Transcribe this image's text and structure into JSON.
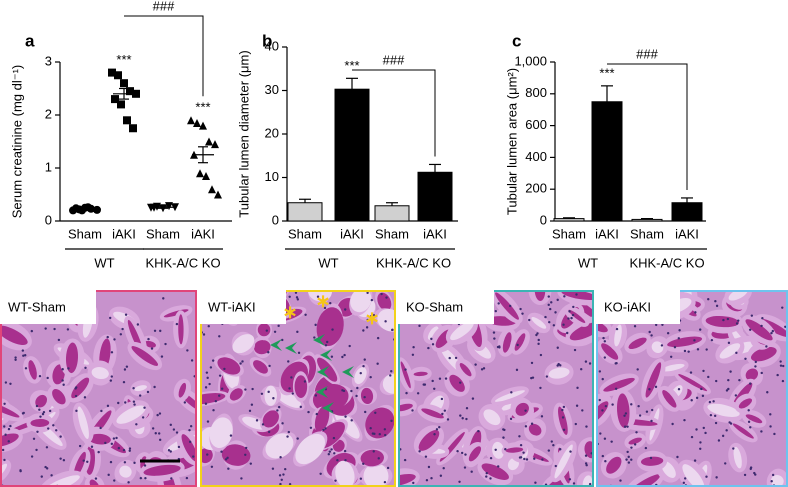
{
  "chart_data": [
    {
      "type": "dot",
      "panel": "a",
      "ylabel": "Serum creatinine (mg dl⁻¹)",
      "categories": [
        "Sham",
        "iAKI",
        "Sham",
        "iAKI"
      ],
      "groups": [
        "WT",
        "KHK-A/C KO"
      ],
      "markers": [
        "circle",
        "square",
        "triangle",
        "triangle-down"
      ],
      "points": [
        [
          0.2,
          0.22,
          0.25,
          0.23,
          0.21,
          0.24,
          0.2,
          0.26
        ],
        [
          2.8,
          2.75,
          2.6,
          2.45,
          2.4,
          2.3,
          2.2,
          1.9,
          1.75
        ],
        [
          0.25,
          0.27,
          0.24,
          0.28,
          0.26,
          0.25
        ],
        [
          1.9,
          1.85,
          1.8,
          1.5,
          1.45,
          1.25,
          0.9,
          0.85,
          0.6,
          0.5
        ]
      ],
      "means": [
        0.23,
        2.4,
        0.26,
        1.25
      ],
      "errors": [
        0.02,
        0.1,
        0.02,
        0.15
      ],
      "ylim": [
        0,
        3
      ],
      "yticks": [
        0,
        1,
        2,
        3
      ],
      "annotations": [
        "***",
        "***",
        "###"
      ]
    },
    {
      "type": "bar",
      "panel": "b",
      "ylabel": "Tubular lumen diameter (μm)",
      "categories": [
        "Sham",
        "iAKI",
        "Sham",
        "iAKI"
      ],
      "groups": [
        "WT",
        "KHK-A/C KO"
      ],
      "values": [
        4.2,
        30.3,
        3.5,
        11.2
      ],
      "errors": [
        0.8,
        2.5,
        0.7,
        1.8
      ],
      "colors": [
        "#d0d0d0",
        "#000000",
        "#d0d0d0",
        "#000000"
      ],
      "ylim": [
        0,
        40
      ],
      "yticks": [
        0,
        10,
        20,
        30,
        40
      ],
      "annotations": [
        "***",
        "###"
      ]
    },
    {
      "type": "bar",
      "panel": "c",
      "ylabel": "Tubular lumen area (μm²)",
      "categories": [
        "Sham",
        "iAKI",
        "Sham",
        "iAKI"
      ],
      "groups": [
        "WT",
        "KHK-A/C KO"
      ],
      "values": [
        15,
        750,
        10,
        115
      ],
      "errors": [
        5,
        100,
        5,
        30
      ],
      "colors": [
        "#d0d0d0",
        "#000000",
        "#d0d0d0",
        "#000000"
      ],
      "ylim": [
        0,
        1000
      ],
      "yticks": [
        0,
        200,
        400,
        600,
        800,
        {
          "value": 1000,
          "label": "1,000"
        }
      ],
      "annotations": [
        "***",
        "###"
      ]
    }
  ],
  "images": {
    "labels": [
      "WT-Sham",
      "WT-iAKI",
      "KO-Sham",
      "KO-iAKI"
    ]
  }
}
